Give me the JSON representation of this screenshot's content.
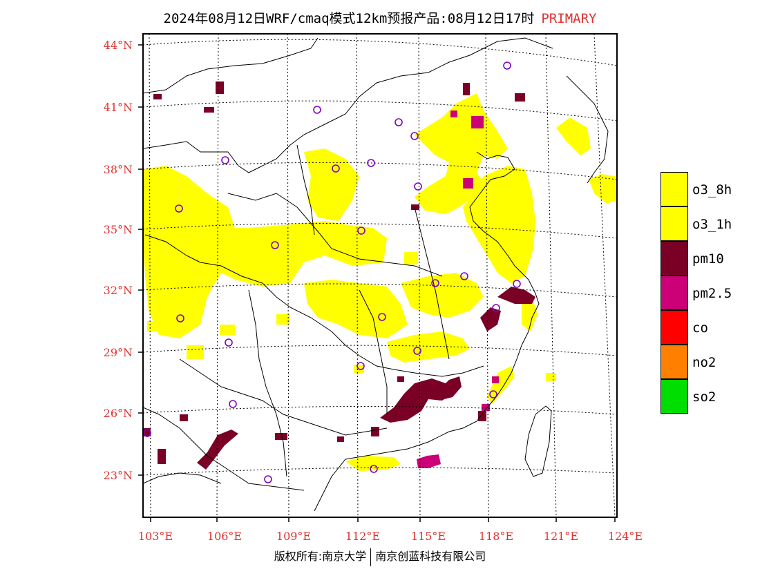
{
  "header": {
    "title": "2024年08月12日WRF/cmaq模式12km预报产品:08月12日17时",
    "tag": "PRIMARY"
  },
  "axes": {
    "lat_labels": [
      "44°N",
      "41°N",
      "38°N",
      "35°N",
      "32°N",
      "29°N",
      "26°N",
      "23°N"
    ],
    "lon_labels": [
      "103°E",
      "106°E",
      "109°E",
      "112°E",
      "115°E",
      "118°E",
      "121°E",
      "124°E"
    ]
  },
  "legend": [
    {
      "label": "o3_8h",
      "color": "#ffff00"
    },
    {
      "label": "o3_1h",
      "color": "#ffff00"
    },
    {
      "label": "pm10",
      "color": "#7a0026"
    },
    {
      "label": "pm2.5",
      "color": "#cc0077"
    },
    {
      "label": "co",
      "color": "#ff0000"
    },
    {
      "label": "no2",
      "color": "#ff8000"
    },
    {
      "label": "so2",
      "color": "#00dd00"
    }
  ],
  "footer": {
    "left": "版权所有:南京大学",
    "right": "南京创蓝科技有限公司"
  },
  "colors": {
    "axis_label": "#e03030",
    "station_marker": "#8000c0"
  }
}
